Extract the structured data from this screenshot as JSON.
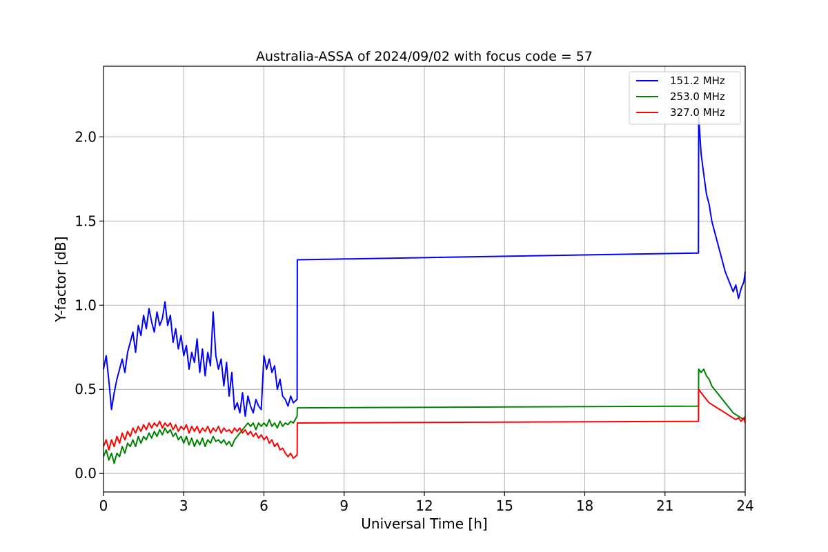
{
  "chart_data": {
    "type": "line",
    "title": "Australia-ASSA of 2024/09/02 with focus code = 57",
    "xlabel": "Universal Time [h]",
    "ylabel": "Y-factor [dB]",
    "xlim": [
      0,
      24
    ],
    "ylim": [
      -0.11,
      2.42
    ],
    "xticks": [
      0,
      3,
      6,
      9,
      12,
      15,
      18,
      21,
      24
    ],
    "xtick_labels": [
      "0",
      "3",
      "6",
      "9",
      "12",
      "15",
      "18",
      "21",
      "24"
    ],
    "yticks": [
      0.0,
      0.5,
      1.0,
      1.5,
      2.0
    ],
    "ytick_labels": [
      "0.0",
      "0.5",
      "1.0",
      "1.5",
      "2.0"
    ],
    "grid": true,
    "legend_position": "top-right",
    "series": [
      {
        "name": "151.2 MHz",
        "color": "#0000ff",
        "x": [
          0.0,
          0.1,
          0.2,
          0.3,
          0.4,
          0.5,
          0.6,
          0.7,
          0.8,
          0.9,
          1.0,
          1.1,
          1.2,
          1.3,
          1.4,
          1.5,
          1.6,
          1.7,
          1.8,
          1.9,
          2.0,
          2.1,
          2.2,
          2.3,
          2.4,
          2.5,
          2.6,
          2.7,
          2.8,
          2.9,
          3.0,
          3.1,
          3.2,
          3.3,
          3.4,
          3.5,
          3.6,
          3.7,
          3.8,
          3.9,
          4.0,
          4.1,
          4.2,
          4.3,
          4.4,
          4.5,
          4.6,
          4.7,
          4.8,
          4.9,
          5.0,
          5.1,
          5.2,
          5.3,
          5.4,
          5.5,
          5.6,
          5.7,
          5.8,
          5.9,
          6.0,
          6.1,
          6.2,
          6.3,
          6.4,
          6.5,
          6.6,
          6.7,
          6.8,
          6.9,
          7.0,
          7.1,
          7.24,
          7.25,
          22.25,
          22.26,
          22.35,
          22.45,
          22.55,
          22.65,
          22.75,
          22.85,
          22.95,
          23.05,
          23.15,
          23.25,
          23.35,
          23.45,
          23.55,
          23.65,
          23.75,
          23.85,
          23.95,
          24.0
        ],
        "y": [
          0.62,
          0.7,
          0.55,
          0.38,
          0.48,
          0.56,
          0.62,
          0.68,
          0.6,
          0.72,
          0.78,
          0.84,
          0.72,
          0.88,
          0.82,
          0.94,
          0.86,
          0.98,
          0.9,
          0.84,
          0.96,
          0.88,
          0.92,
          1.02,
          0.88,
          0.94,
          0.78,
          0.86,
          0.74,
          0.82,
          0.7,
          0.76,
          0.62,
          0.72,
          0.66,
          0.8,
          0.6,
          0.74,
          0.58,
          0.72,
          0.64,
          0.96,
          0.7,
          0.62,
          0.68,
          0.52,
          0.66,
          0.46,
          0.6,
          0.38,
          0.42,
          0.36,
          0.48,
          0.34,
          0.46,
          0.4,
          0.36,
          0.44,
          0.4,
          0.38,
          0.7,
          0.62,
          0.68,
          0.6,
          0.64,
          0.5,
          0.56,
          0.46,
          0.44,
          0.4,
          0.46,
          0.42,
          0.44,
          1.27,
          1.31,
          2.12,
          1.9,
          1.78,
          1.66,
          1.6,
          1.5,
          1.44,
          1.38,
          1.32,
          1.26,
          1.2,
          1.16,
          1.12,
          1.08,
          1.12,
          1.04,
          1.1,
          1.14,
          1.2
        ]
      },
      {
        "name": "253.0 MHz",
        "color": "#008000",
        "x": [
          0.0,
          0.1,
          0.2,
          0.3,
          0.4,
          0.5,
          0.6,
          0.7,
          0.8,
          0.9,
          1.0,
          1.1,
          1.2,
          1.3,
          1.4,
          1.5,
          1.6,
          1.7,
          1.8,
          1.9,
          2.0,
          2.1,
          2.2,
          2.3,
          2.4,
          2.5,
          2.6,
          2.7,
          2.8,
          2.9,
          3.0,
          3.1,
          3.2,
          3.3,
          3.4,
          3.5,
          3.6,
          3.7,
          3.8,
          3.9,
          4.0,
          4.1,
          4.2,
          4.3,
          4.4,
          4.5,
          4.6,
          4.7,
          4.8,
          4.9,
          5.0,
          5.1,
          5.2,
          5.3,
          5.4,
          5.5,
          5.6,
          5.7,
          5.8,
          5.9,
          6.0,
          6.1,
          6.2,
          6.3,
          6.4,
          6.5,
          6.6,
          6.7,
          6.8,
          6.9,
          7.0,
          7.1,
          7.24,
          7.25,
          22.25,
          22.26,
          22.35,
          22.45,
          22.55,
          22.65,
          22.75,
          22.85,
          22.95,
          23.05,
          23.15,
          23.25,
          23.35,
          23.45,
          23.55,
          23.65,
          23.75,
          23.85,
          23.95,
          24.0
        ],
        "y": [
          0.1,
          0.14,
          0.08,
          0.12,
          0.06,
          0.12,
          0.1,
          0.16,
          0.12,
          0.18,
          0.16,
          0.2,
          0.16,
          0.22,
          0.18,
          0.22,
          0.2,
          0.24,
          0.21,
          0.25,
          0.22,
          0.26,
          0.23,
          0.27,
          0.24,
          0.26,
          0.22,
          0.24,
          0.2,
          0.22,
          0.18,
          0.22,
          0.17,
          0.21,
          0.16,
          0.2,
          0.17,
          0.21,
          0.16,
          0.2,
          0.18,
          0.22,
          0.19,
          0.2,
          0.18,
          0.2,
          0.17,
          0.19,
          0.16,
          0.2,
          0.22,
          0.24,
          0.26,
          0.28,
          0.3,
          0.28,
          0.3,
          0.26,
          0.3,
          0.28,
          0.3,
          0.28,
          0.32,
          0.28,
          0.3,
          0.27,
          0.31,
          0.28,
          0.3,
          0.29,
          0.31,
          0.3,
          0.34,
          0.39,
          0.4,
          0.62,
          0.6,
          0.62,
          0.58,
          0.56,
          0.52,
          0.5,
          0.48,
          0.46,
          0.44,
          0.42,
          0.4,
          0.38,
          0.36,
          0.35,
          0.34,
          0.33,
          0.32,
          0.34
        ]
      },
      {
        "name": "327.0 MHz",
        "color": "#ff0000",
        "x": [
          0.0,
          0.1,
          0.2,
          0.3,
          0.4,
          0.5,
          0.6,
          0.7,
          0.8,
          0.9,
          1.0,
          1.1,
          1.2,
          1.3,
          1.4,
          1.5,
          1.6,
          1.7,
          1.8,
          1.9,
          2.0,
          2.1,
          2.2,
          2.3,
          2.4,
          2.5,
          2.6,
          2.7,
          2.8,
          2.9,
          3.0,
          3.1,
          3.2,
          3.3,
          3.4,
          3.5,
          3.6,
          3.7,
          3.8,
          3.9,
          4.0,
          4.1,
          4.2,
          4.3,
          4.4,
          4.5,
          4.6,
          4.7,
          4.8,
          4.9,
          5.0,
          5.1,
          5.2,
          5.3,
          5.4,
          5.5,
          5.6,
          5.7,
          5.8,
          5.9,
          6.0,
          6.1,
          6.2,
          6.3,
          6.4,
          6.5,
          6.6,
          6.7,
          6.8,
          6.9,
          7.0,
          7.1,
          7.24,
          7.25,
          22.25,
          22.26,
          22.35,
          22.45,
          22.55,
          22.65,
          22.75,
          22.85,
          22.95,
          23.05,
          23.15,
          23.25,
          23.35,
          23.45,
          23.55,
          23.65,
          23.75,
          23.85,
          23.95,
          24.0
        ],
        "y": [
          0.16,
          0.2,
          0.14,
          0.2,
          0.16,
          0.22,
          0.18,
          0.24,
          0.2,
          0.25,
          0.22,
          0.27,
          0.24,
          0.28,
          0.25,
          0.29,
          0.26,
          0.3,
          0.27,
          0.3,
          0.28,
          0.31,
          0.27,
          0.3,
          0.28,
          0.3,
          0.26,
          0.29,
          0.25,
          0.28,
          0.26,
          0.29,
          0.24,
          0.28,
          0.25,
          0.28,
          0.24,
          0.27,
          0.25,
          0.28,
          0.24,
          0.27,
          0.25,
          0.28,
          0.24,
          0.27,
          0.25,
          0.26,
          0.24,
          0.27,
          0.25,
          0.27,
          0.24,
          0.26,
          0.23,
          0.25,
          0.22,
          0.24,
          0.21,
          0.23,
          0.2,
          0.22,
          0.18,
          0.2,
          0.16,
          0.18,
          0.14,
          0.15,
          0.12,
          0.1,
          0.12,
          0.09,
          0.11,
          0.3,
          0.31,
          0.5,
          0.48,
          0.46,
          0.44,
          0.42,
          0.41,
          0.4,
          0.39,
          0.38,
          0.37,
          0.36,
          0.35,
          0.34,
          0.33,
          0.32,
          0.33,
          0.31,
          0.33,
          0.3
        ]
      }
    ]
  }
}
